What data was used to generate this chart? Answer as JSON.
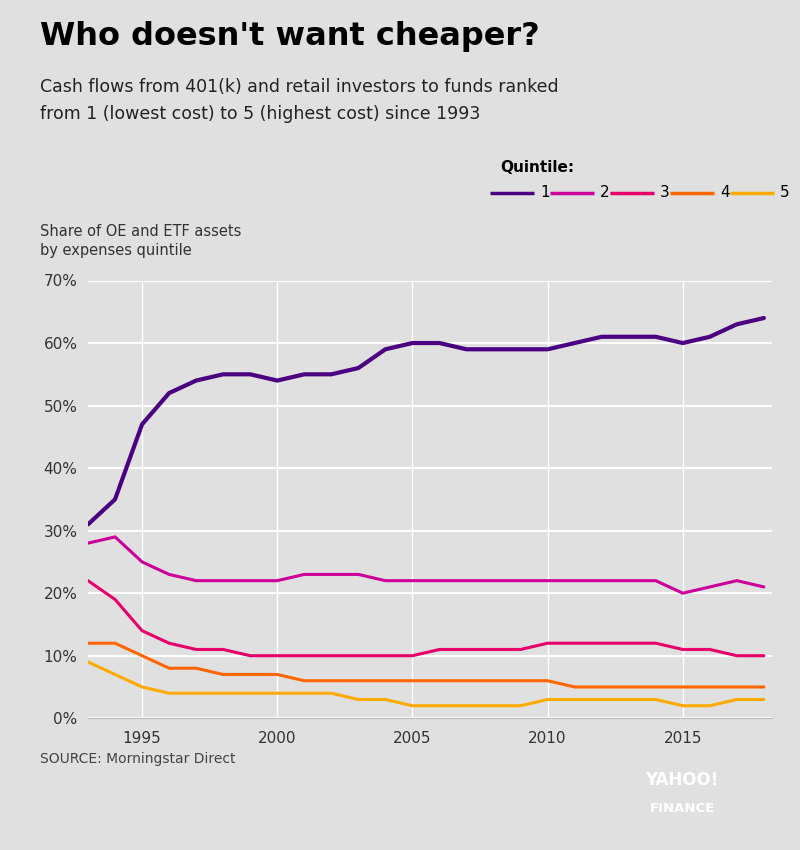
{
  "title": "Who doesn't want cheaper?",
  "subtitle_line1": "Cash flows from 401(k) and retail investors to funds ranked",
  "subtitle_line2": "from 1 (lowest cost) to 5 (highest cost) since 1993",
  "ylabel_line1": "Share of OE and ETF assets",
  "ylabel_line2": "by expenses quintile",
  "source": "SOURCE: Morningstar Direct",
  "legend_title": "Quintile:",
  "background_color": "#e0e0e0",
  "years": [
    1993,
    1994,
    1995,
    1996,
    1997,
    1998,
    1999,
    2000,
    2001,
    2002,
    2003,
    2004,
    2005,
    2006,
    2007,
    2008,
    2009,
    2010,
    2011,
    2012,
    2013,
    2014,
    2015,
    2016,
    2017,
    2018
  ],
  "q1": [
    31,
    35,
    47,
    52,
    54,
    55,
    55,
    54,
    55,
    55,
    56,
    59,
    60,
    60,
    59,
    59,
    59,
    59,
    60,
    61,
    61,
    61,
    60,
    61,
    63,
    64
  ],
  "q2": [
    28,
    29,
    25,
    23,
    22,
    22,
    22,
    22,
    23,
    23,
    23,
    22,
    22,
    22,
    22,
    22,
    22,
    22,
    22,
    22,
    22,
    22,
    20,
    21,
    22,
    21
  ],
  "q3": [
    22,
    19,
    14,
    12,
    11,
    11,
    10,
    10,
    10,
    10,
    10,
    10,
    10,
    11,
    11,
    11,
    11,
    12,
    12,
    12,
    12,
    12,
    11,
    11,
    10,
    10
  ],
  "q4": [
    12,
    12,
    10,
    8,
    8,
    7,
    7,
    7,
    6,
    6,
    6,
    6,
    6,
    6,
    6,
    6,
    6,
    6,
    5,
    5,
    5,
    5,
    5,
    5,
    5,
    5
  ],
  "q5": [
    9,
    7,
    5,
    4,
    4,
    4,
    4,
    4,
    4,
    4,
    3,
    3,
    2,
    2,
    2,
    2,
    2,
    3,
    3,
    3,
    3,
    3,
    2,
    2,
    3,
    3
  ],
  "colors": {
    "q1": "#4b0082",
    "q2": "#cc0099",
    "q3": "#e8006a",
    "q4": "#ff6600",
    "q5": "#ffaa00"
  },
  "ylim": [
    0,
    70
  ],
  "yticks": [
    0,
    10,
    20,
    30,
    40,
    50,
    60,
    70
  ],
  "line_width": 2.2
}
